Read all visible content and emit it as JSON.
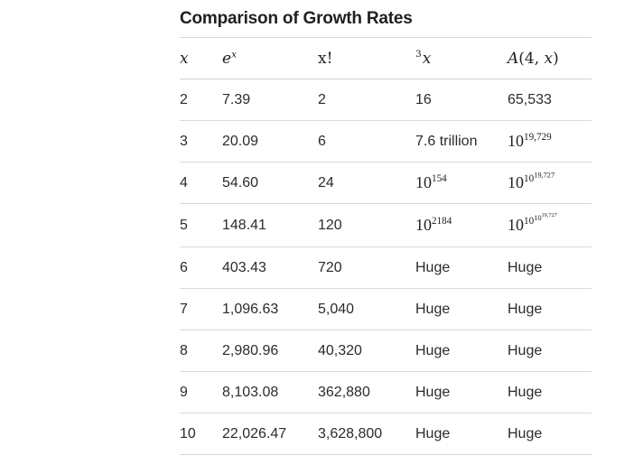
{
  "title": "Comparison of Growth Rates",
  "headers": {
    "x": "x",
    "exp_base": "e",
    "exp_power": "x",
    "fact": "x!",
    "tet_height": "3",
    "tet_base": "x",
    "ack_fn": "A",
    "ack_args_open": "(4, ",
    "ack_args_var": "x",
    "ack_args_close": ")"
  },
  "rows": [
    {
      "x": "2",
      "exp": "7.39",
      "fact": "2",
      "tet": "16",
      "ack": "65,533"
    },
    {
      "x": "3",
      "exp": "20.09",
      "fact": "6",
      "tet": "7.6 trillion",
      "ack_base": "10",
      "ack_e1": "19,729"
    },
    {
      "x": "4",
      "exp": "54.60",
      "fact": "24",
      "tet_base": "10",
      "tet_e1": "154",
      "ack_base": "10",
      "ack_e1": "10",
      "ack_e2": "19,727"
    },
    {
      "x": "5",
      "exp": "148.41",
      "fact": "120",
      "tet_base": "10",
      "tet_e1": "2184",
      "ack_base": "10",
      "ack_e1": "10",
      "ack_e2": "10",
      "ack_e3": "19,727"
    },
    {
      "x": "6",
      "exp": "403.43",
      "fact": "720",
      "tet": "Huge",
      "ack": "Huge"
    },
    {
      "x": "7",
      "exp": "1,096.63",
      "fact": "5,040",
      "tet": "Huge",
      "ack": "Huge"
    },
    {
      "x": "8",
      "exp": "2,980.96",
      "fact": "40,320",
      "tet": "Huge",
      "ack": "Huge"
    },
    {
      "x": "9",
      "exp": "8,103.08",
      "fact": "362,880",
      "tet": "Huge",
      "ack": "Huge"
    },
    {
      "x": "10",
      "exp": "22,026.47",
      "fact": "3,628,800",
      "tet": "Huge",
      "ack": "Huge"
    }
  ]
}
